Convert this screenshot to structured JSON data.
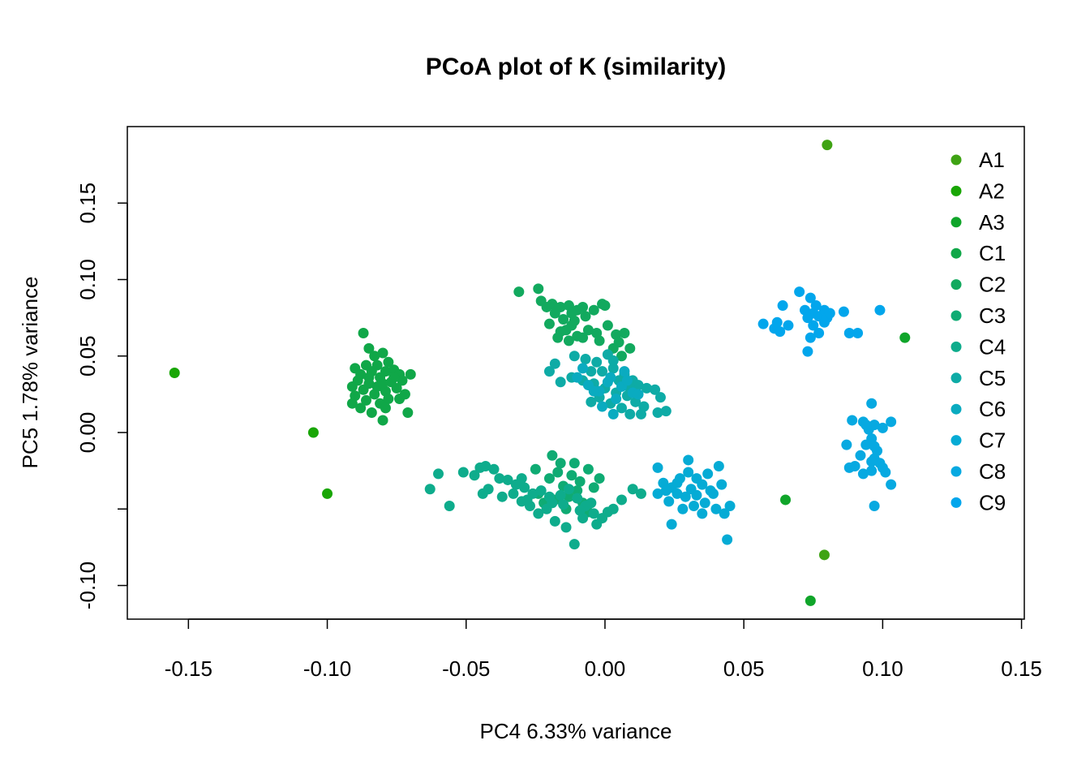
{
  "chart_data": {
    "type": "scatter",
    "title": "PCoA plot of K (similarity)",
    "xlabel": "PC4  6.33% variance",
    "ylabel": "PC5  1.78% variance",
    "xlim": [
      -0.172,
      0.151
    ],
    "ylim": [
      -0.122,
      0.2
    ],
    "xticks": [
      -0.15,
      -0.1,
      -0.05,
      0.0,
      0.05,
      0.1,
      0.15
    ],
    "xtick_labels": [
      "-0.15",
      "-0.10",
      "-0.05",
      "0.00",
      "0.05",
      "0.10",
      "0.15"
    ],
    "yticks": [
      -0.1,
      -0.05,
      0.0,
      0.05,
      0.1,
      0.15
    ],
    "ytick_labels": [
      "-0.10",
      "",
      "0.00",
      "0.05",
      "0.10",
      "0.15"
    ],
    "grid": false,
    "legend_position": "top-right",
    "series": [
      {
        "name": "A1",
        "color": "#3fa314",
        "points": [
          [
            0.08,
            0.188
          ],
          [
            0.079,
            -0.08
          ]
        ]
      },
      {
        "name": "A2",
        "color": "#19a605",
        "points": [
          [
            -0.155,
            0.039
          ],
          [
            -0.105,
            0.0
          ],
          [
            -0.1,
            -0.04
          ]
        ]
      },
      {
        "name": "A3",
        "color": "#10a52a",
        "points": [
          [
            0.074,
            -0.11
          ],
          [
            0.065,
            -0.044
          ],
          [
            0.108,
            0.062
          ]
        ]
      },
      {
        "name": "C1",
        "color": "#10a748",
        "points": [
          [
            -0.087,
            0.065
          ],
          [
            -0.085,
            0.055
          ],
          [
            -0.083,
            0.05
          ],
          [
            -0.08,
            0.052
          ],
          [
            -0.078,
            0.046
          ],
          [
            -0.086,
            0.044
          ],
          [
            -0.09,
            0.042
          ],
          [
            -0.088,
            0.038
          ],
          [
            -0.084,
            0.04
          ],
          [
            -0.081,
            0.036
          ],
          [
            -0.076,
            0.041
          ],
          [
            -0.074,
            0.038
          ],
          [
            -0.077,
            0.033
          ],
          [
            -0.082,
            0.03
          ],
          [
            -0.085,
            0.032
          ],
          [
            -0.089,
            0.034
          ],
          [
            -0.091,
            0.03
          ],
          [
            -0.087,
            0.028
          ],
          [
            -0.083,
            0.025
          ],
          [
            -0.079,
            0.027
          ],
          [
            -0.075,
            0.029
          ],
          [
            -0.073,
            0.034
          ],
          [
            -0.07,
            0.038
          ],
          [
            -0.078,
            0.022
          ],
          [
            -0.081,
            0.019
          ],
          [
            -0.086,
            0.021
          ],
          [
            -0.09,
            0.024
          ],
          [
            -0.091,
            0.019
          ],
          [
            -0.088,
            0.016
          ],
          [
            -0.084,
            0.013
          ],
          [
            -0.079,
            0.016
          ],
          [
            -0.074,
            0.022
          ],
          [
            -0.072,
            0.025
          ],
          [
            -0.08,
            0.008
          ],
          [
            -0.071,
            0.013
          ],
          [
            -0.082,
            0.044
          ],
          [
            -0.079,
            0.04
          ],
          [
            -0.076,
            0.036
          ],
          [
            -0.085,
            0.036
          ],
          [
            -0.08,
            0.032
          ]
        ]
      },
      {
        "name": "C2",
        "color": "#12a95e",
        "points": [
          [
            -0.031,
            0.092
          ],
          [
            -0.024,
            0.094
          ],
          [
            -0.023,
            0.086
          ],
          [
            -0.019,
            0.084
          ],
          [
            -0.016,
            0.082
          ],
          [
            -0.013,
            0.083
          ],
          [
            -0.01,
            0.08
          ],
          [
            -0.008,
            0.082
          ],
          [
            -0.004,
            0.08
          ],
          [
            -0.001,
            0.084
          ],
          [
            -0.018,
            0.078
          ],
          [
            -0.015,
            0.074
          ],
          [
            -0.012,
            0.07
          ],
          [
            -0.02,
            0.071
          ],
          [
            -0.016,
            0.066
          ],
          [
            -0.013,
            0.06
          ],
          [
            -0.01,
            0.063
          ],
          [
            -0.006,
            0.067
          ],
          [
            -0.003,
            0.065
          ],
          [
            0.001,
            0.07
          ],
          [
            0.004,
            0.064
          ],
          [
            0.007,
            0.065
          ],
          [
            0.005,
            0.059
          ],
          [
            0.009,
            0.055
          ],
          [
            -0.011,
            0.073
          ],
          [
            -0.014,
            0.067
          ],
          [
            -0.021,
            0.082
          ],
          [
            -0.008,
            0.062
          ],
          [
            0.006,
            0.05
          ],
          [
            -0.002,
            0.06
          ],
          [
            -0.017,
            0.062
          ],
          [
            -0.007,
            0.076
          ],
          [
            0.0,
            0.083
          ],
          [
            0.003,
            0.055
          ],
          [
            -0.012,
            0.078
          ]
        ]
      },
      {
        "name": "C3",
        "color": "#0fab73",
        "points": [
          [
            -0.019,
            -0.015
          ],
          [
            -0.016,
            -0.02
          ],
          [
            -0.012,
            -0.028
          ],
          [
            -0.009,
            -0.032
          ],
          [
            -0.015,
            -0.035
          ],
          [
            -0.02,
            -0.03
          ],
          [
            -0.024,
            -0.04
          ],
          [
            -0.018,
            -0.044
          ],
          [
            -0.013,
            -0.042
          ],
          [
            -0.008,
            -0.046
          ],
          [
            -0.004,
            -0.036
          ],
          [
            -0.002,
            -0.03
          ],
          [
            -0.006,
            -0.024
          ],
          [
            -0.01,
            -0.038
          ],
          [
            -0.022,
            -0.046
          ],
          [
            -0.014,
            -0.05
          ],
          [
            -0.006,
            -0.052
          ],
          [
            -0.017,
            -0.026
          ],
          [
            -0.011,
            -0.02
          ],
          [
            -0.025,
            -0.024
          ]
        ]
      },
      {
        "name": "C4",
        "color": "#0eac8c",
        "points": [
          [
            -0.06,
            -0.027
          ],
          [
            -0.051,
            -0.026
          ],
          [
            -0.047,
            -0.028
          ],
          [
            -0.045,
            -0.023
          ],
          [
            -0.038,
            -0.03
          ],
          [
            -0.035,
            -0.031
          ],
          [
            -0.032,
            -0.034
          ],
          [
            -0.029,
            -0.036
          ],
          [
            -0.026,
            -0.04
          ],
          [
            -0.042,
            -0.037
          ],
          [
            -0.044,
            -0.04
          ],
          [
            -0.037,
            -0.042
          ],
          [
            -0.03,
            -0.045
          ],
          [
            -0.027,
            -0.048
          ],
          [
            -0.024,
            -0.053
          ],
          [
            -0.021,
            -0.05
          ],
          [
            -0.019,
            -0.046
          ],
          [
            -0.016,
            -0.041
          ],
          [
            -0.013,
            -0.037
          ],
          [
            -0.01,
            -0.043
          ],
          [
            -0.007,
            -0.048
          ],
          [
            -0.004,
            -0.053
          ],
          [
            -0.001,
            -0.056
          ],
          [
            0.003,
            -0.05
          ],
          [
            0.006,
            -0.044
          ],
          [
            0.01,
            -0.037
          ],
          [
            0.013,
            -0.04
          ],
          [
            -0.056,
            -0.048
          ],
          [
            -0.063,
            -0.037
          ],
          [
            -0.04,
            -0.024
          ],
          [
            -0.043,
            -0.022
          ],
          [
            -0.033,
            -0.04
          ],
          [
            -0.028,
            -0.044
          ],
          [
            -0.023,
            -0.038
          ],
          [
            -0.018,
            -0.058
          ],
          [
            -0.014,
            -0.062
          ],
          [
            -0.011,
            -0.073
          ],
          [
            -0.008,
            -0.056
          ],
          [
            -0.003,
            -0.06
          ],
          [
            0.001,
            -0.052
          ],
          [
            -0.03,
            -0.03
          ],
          [
            -0.02,
            -0.042
          ],
          [
            -0.015,
            -0.047
          ],
          [
            -0.009,
            -0.051
          ],
          [
            -0.005,
            -0.046
          ]
        ]
      },
      {
        "name": "C5",
        "color": "#0eaba6",
        "points": [
          [
            -0.011,
            0.05
          ],
          [
            -0.007,
            0.048
          ],
          [
            -0.003,
            0.046
          ],
          [
            0.001,
            0.051
          ],
          [
            0.003,
            0.047
          ],
          [
            -0.005,
            0.04
          ],
          [
            -0.001,
            0.04
          ],
          [
            0.003,
            0.042
          ],
          [
            0.007,
            0.038
          ],
          [
            0.01,
            0.034
          ],
          [
            0.012,
            0.031
          ],
          [
            0.015,
            0.029
          ],
          [
            0.018,
            0.028
          ],
          [
            0.02,
            0.023
          ],
          [
            -0.008,
            0.034
          ],
          [
            -0.004,
            0.032
          ],
          [
            0.0,
            0.029
          ],
          [
            0.004,
            0.026
          ],
          [
            0.008,
            0.024
          ],
          [
            0.011,
            0.02
          ],
          [
            0.014,
            0.017
          ],
          [
            -0.012,
            0.036
          ],
          [
            -0.016,
            0.033
          ],
          [
            -0.018,
            0.045
          ],
          [
            -0.02,
            0.04
          ],
          [
            -0.005,
            0.02
          ],
          [
            -0.002,
            0.023
          ],
          [
            0.002,
            0.019
          ],
          [
            0.006,
            0.016
          ],
          [
            0.009,
            0.012
          ],
          [
            0.013,
            0.012
          ],
          [
            0.019,
            0.013
          ],
          [
            0.022,
            0.014
          ],
          [
            0.005,
            0.034
          ],
          [
            0.009,
            0.029
          ]
        ]
      },
      {
        "name": "C6",
        "color": "#0aabc0",
        "points": [
          [
            -0.01,
            0.036
          ],
          [
            -0.006,
            0.031
          ],
          [
            -0.002,
            0.027
          ],
          [
            0.002,
            0.036
          ],
          [
            0.006,
            0.03
          ],
          [
            0.01,
            0.026
          ],
          [
            0.004,
            0.022
          ],
          [
            -0.004,
            0.027
          ],
          [
            0.007,
            0.04
          ],
          [
            -0.008,
            0.042
          ],
          [
            0.001,
            0.033
          ],
          [
            0.012,
            0.025
          ],
          [
            0.008,
            0.034
          ],
          [
            -0.001,
            0.017
          ],
          [
            0.003,
            0.012
          ]
        ]
      },
      {
        "name": "C7",
        "color": "#05abd5",
        "points": [
          [
            0.019,
            -0.023
          ],
          [
            0.021,
            -0.033
          ],
          [
            0.024,
            -0.036
          ],
          [
            0.027,
            -0.03
          ],
          [
            0.03,
            -0.026
          ],
          [
            0.033,
            -0.03
          ],
          [
            0.035,
            -0.034
          ],
          [
            0.037,
            -0.027
          ],
          [
            0.041,
            -0.022
          ],
          [
            0.042,
            -0.034
          ],
          [
            0.039,
            -0.04
          ],
          [
            0.036,
            -0.046
          ],
          [
            0.032,
            -0.048
          ],
          [
            0.029,
            -0.042
          ],
          [
            0.026,
            -0.04
          ],
          [
            0.023,
            -0.045
          ],
          [
            0.019,
            -0.04
          ],
          [
            0.031,
            -0.037
          ],
          [
            0.033,
            -0.041
          ],
          [
            0.028,
            -0.05
          ],
          [
            0.024,
            -0.06
          ],
          [
            0.035,
            -0.053
          ],
          [
            0.04,
            -0.05
          ],
          [
            0.045,
            -0.048
          ],
          [
            0.043,
            -0.053
          ],
          [
            0.044,
            -0.07
          ],
          [
            0.038,
            -0.038
          ],
          [
            0.022,
            -0.038
          ],
          [
            0.03,
            -0.018
          ],
          [
            0.026,
            -0.033
          ]
        ]
      },
      {
        "name": "C8",
        "color": "#07a9e1",
        "points": [
          [
            0.089,
            0.008
          ],
          [
            0.093,
            0.007
          ],
          [
            0.095,
            0.002
          ],
          [
            0.097,
            0.005
          ],
          [
            0.096,
            -0.004
          ],
          [
            0.094,
            -0.008
          ],
          [
            0.098,
            -0.012
          ],
          [
            0.097,
            -0.017
          ],
          [
            0.099,
            -0.02
          ],
          [
            0.1,
            -0.023
          ],
          [
            0.092,
            -0.015
          ],
          [
            0.09,
            -0.022
          ],
          [
            0.088,
            -0.023
          ],
          [
            0.093,
            -0.027
          ],
          [
            0.096,
            -0.019
          ],
          [
            0.103,
            0.007
          ],
          [
            0.1,
            0.003
          ],
          [
            0.096,
            0.019
          ],
          [
            0.094,
            0.005
          ],
          [
            0.096,
            -0.025
          ],
          [
            0.103,
            -0.034
          ],
          [
            0.097,
            -0.048
          ],
          [
            0.101,
            -0.026
          ],
          [
            0.087,
            -0.008
          ],
          [
            0.097,
            -0.009
          ]
        ]
      },
      {
        "name": "C9",
        "color": "#02a6ec",
        "points": [
          [
            0.057,
            0.071
          ],
          [
            0.061,
            0.068
          ],
          [
            0.062,
            0.072
          ],
          [
            0.064,
            0.083
          ],
          [
            0.066,
            0.07
          ],
          [
            0.07,
            0.092
          ],
          [
            0.072,
            0.08
          ],
          [
            0.074,
            0.088
          ],
          [
            0.075,
            0.078
          ],
          [
            0.077,
            0.076
          ],
          [
            0.079,
            0.08
          ],
          [
            0.08,
            0.075
          ],
          [
            0.081,
            0.078
          ],
          [
            0.076,
            0.083
          ],
          [
            0.073,
            0.075
          ],
          [
            0.075,
            0.07
          ],
          [
            0.077,
            0.065
          ],
          [
            0.074,
            0.062
          ],
          [
            0.073,
            0.053
          ],
          [
            0.079,
            0.072
          ],
          [
            0.086,
            0.079
          ],
          [
            0.088,
            0.065
          ],
          [
            0.091,
            0.065
          ],
          [
            0.099,
            0.08
          ],
          [
            0.063,
            0.066
          ]
        ]
      }
    ]
  }
}
